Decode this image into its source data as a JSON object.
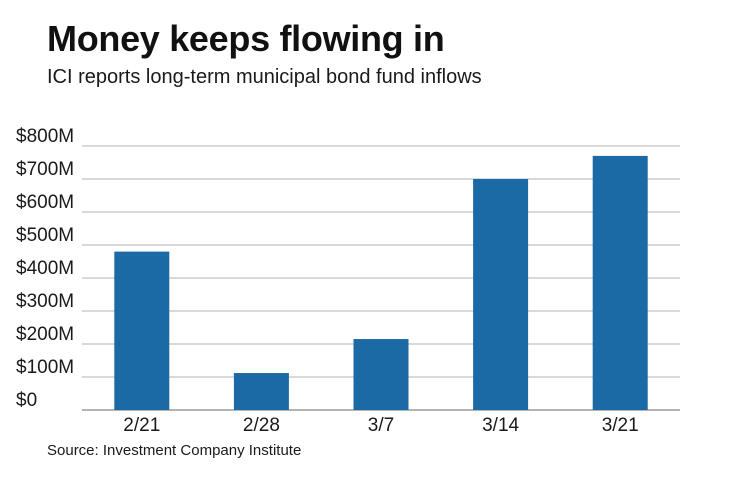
{
  "title": "Money keeps flowing in",
  "subtitle": "ICI reports long-term municipal bond fund inflows",
  "source": "Source: Investment Company Institute",
  "colors": {
    "bar": "#1b6aa5",
    "gridline": "#9a9a9a",
    "axis": "#888888"
  },
  "chart_data": {
    "type": "bar",
    "categories": [
      "2/21",
      "2/28",
      "3/7",
      "3/14",
      "3/21"
    ],
    "values": [
      480,
      112,
      215,
      700,
      770
    ],
    "unit": "millions of dollars",
    "ylim": [
      0,
      800
    ],
    "yticks": [
      0,
      100,
      200,
      300,
      400,
      500,
      600,
      700,
      800
    ],
    "ytick_labels": [
      "$0",
      "$100M",
      "$200M",
      "$300M",
      "$400M",
      "$500M",
      "$600M",
      "$700M",
      "$800M"
    ],
    "grid": true,
    "legend": "none"
  }
}
